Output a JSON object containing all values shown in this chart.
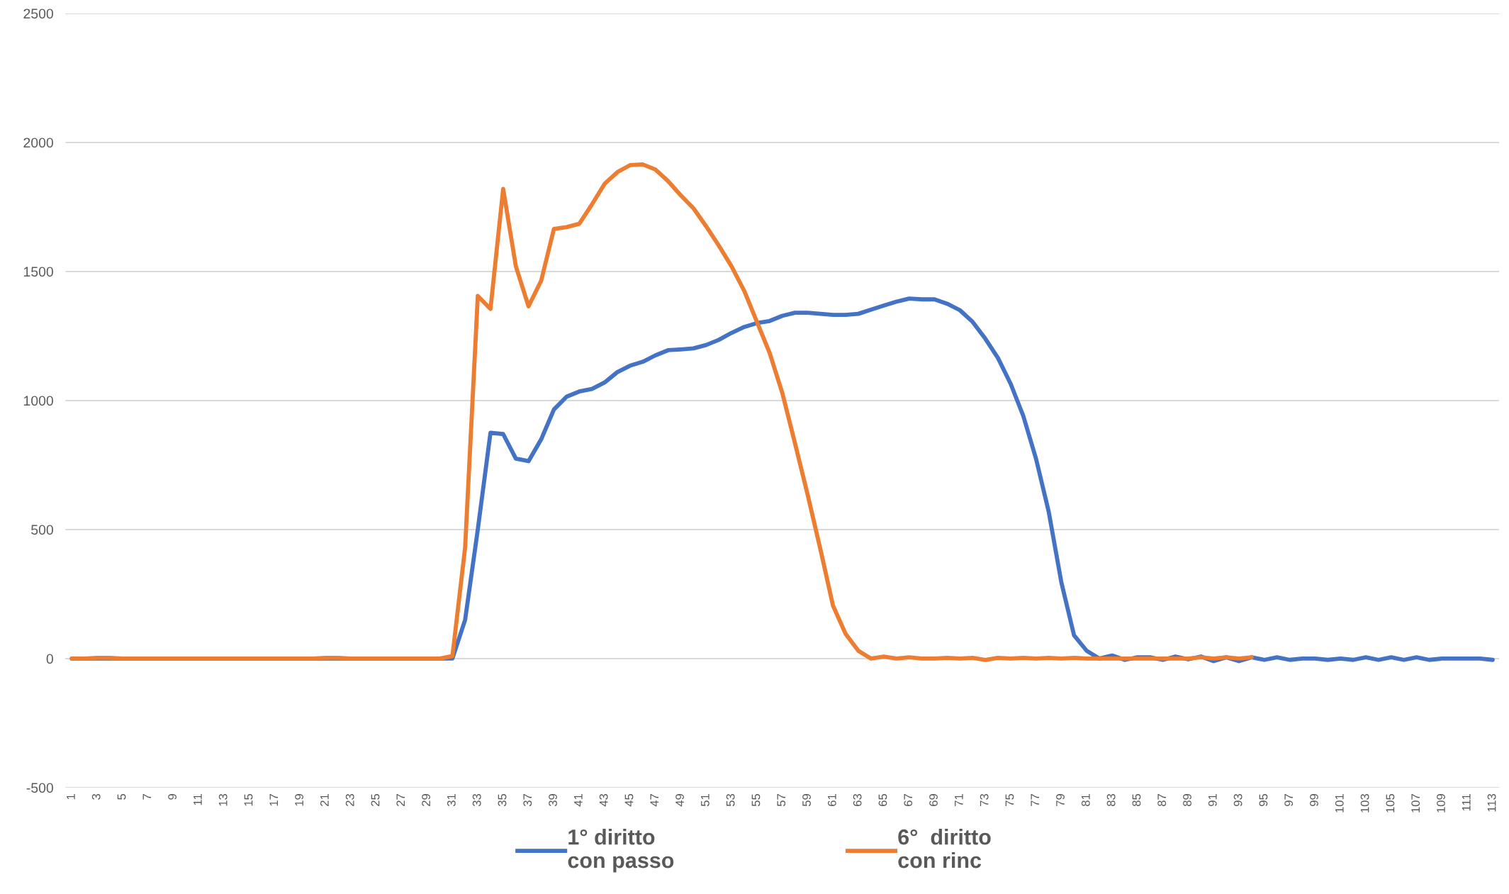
{
  "chart_data": {
    "type": "line",
    "categories": [
      "1",
      null,
      "3",
      null,
      "5",
      null,
      "7",
      null,
      "9",
      null,
      "11",
      null,
      "13",
      null,
      "15",
      null,
      "17",
      null,
      "19",
      null,
      "21",
      null,
      "23",
      null,
      "25",
      null,
      "27",
      null,
      "29",
      null,
      "31",
      null,
      "33",
      null,
      "35",
      null,
      "37",
      null,
      "39",
      null,
      "41",
      null,
      "43",
      null,
      "45",
      null,
      "47",
      null,
      "49",
      null,
      "51",
      null,
      "53",
      null,
      "55",
      null,
      "57",
      null,
      "59",
      null,
      "61",
      null,
      "63",
      null,
      "65",
      null,
      "67",
      null,
      "69",
      null,
      "71",
      null,
      "73",
      null,
      "75",
      null,
      "77",
      null,
      "79",
      null,
      "81",
      null,
      "83",
      null,
      "85",
      null,
      "87",
      null,
      "89",
      null,
      "91",
      null,
      "93",
      null,
      "95",
      null,
      "97",
      null,
      "99",
      null,
      "101",
      null,
      "103",
      null,
      "105",
      null,
      "107",
      null,
      "109",
      null,
      "111",
      null,
      "113"
    ],
    "series": [
      {
        "name": "1° diritto\ncon passo",
        "color": "#4472c4",
        "values": [
          0,
          0,
          0,
          0,
          0,
          0,
          0,
          0,
          0,
          0,
          0,
          0,
          0,
          0,
          0,
          0,
          0,
          0,
          0,
          0,
          0,
          0,
          0,
          0,
          0,
          0,
          0,
          0,
          0,
          0,
          0,
          150,
          500,
          875,
          870,
          775,
          765,
          850,
          965,
          1015,
          1035,
          1045,
          1070,
          1110,
          1135,
          1150,
          1175,
          1195,
          1198,
          1202,
          1215,
          1235,
          1262,
          1285,
          1300,
          1308,
          1328,
          1340,
          1340,
          1336,
          1332,
          1332,
          1336,
          1352,
          1368,
          1383,
          1395,
          1392,
          1392,
          1375,
          1350,
          1305,
          1240,
          1165,
          1065,
          940,
          775,
          570,
          295,
          90,
          30,
          0,
          12,
          -5,
          5,
          5,
          -5,
          8,
          -3,
          8,
          -10,
          5,
          -10,
          5,
          -5,
          5,
          -5,
          0,
          0,
          -5,
          0,
          -5,
          5,
          -5,
          5,
          -5,
          5,
          -5,
          0,
          0,
          0,
          0,
          -5
        ]
      },
      {
        "name": "6°  diritto\ncon rinc",
        "color": "#ed7d31",
        "values": [
          0,
          0,
          3,
          3,
          0,
          0,
          0,
          0,
          0,
          0,
          0,
          0,
          0,
          0,
          0,
          0,
          0,
          0,
          0,
          0,
          3,
          3,
          0,
          0,
          0,
          0,
          0,
          0,
          0,
          0,
          10,
          430,
          1405,
          1355,
          1820,
          1520,
          1365,
          1465,
          1665,
          1672,
          1685,
          1760,
          1840,
          1885,
          1912,
          1915,
          1895,
          1850,
          1795,
          1745,
          1675,
          1600,
          1520,
          1425,
          1305,
          1185,
          1030,
          835,
          635,
          425,
          205,
          95,
          30,
          0,
          8,
          0,
          5,
          0,
          0,
          3,
          0,
          3,
          -5,
          3,
          0,
          3,
          0,
          3,
          0,
          3,
          0,
          0,
          0,
          0,
          0,
          0,
          0,
          0,
          0,
          5,
          0,
          5,
          0,
          5,
          null,
          null,
          null,
          null,
          null,
          null,
          null,
          null,
          null,
          null,
          null,
          null,
          null,
          null,
          null,
          null,
          null,
          null,
          null
        ]
      }
    ],
    "ylim": [
      -500,
      2500
    ],
    "yticks": [
      -500,
      0,
      500,
      1000,
      1500,
      2000,
      2500
    ],
    "grid": "y",
    "legend": "bottom",
    "marker": "none",
    "line_style": "solid"
  }
}
